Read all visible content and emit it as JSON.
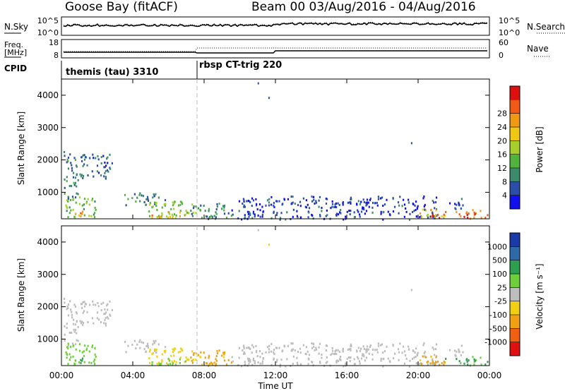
{
  "header": {
    "station": "Goose Bay (fitACF)",
    "beam_info": "Beam 00 03/Aug/2016 - 04/Aug/2016"
  },
  "noise_panel": {
    "left_label": "N.Sky",
    "right_label": "N.Search",
    "left_ticks": [
      "10^5",
      "10^0"
    ],
    "right_ticks": [
      "10^5",
      "10^0"
    ]
  },
  "freq_panel": {
    "left_label_line1": "Freq.",
    "left_label_line2": "[MHz]",
    "right_label": "Nave",
    "left_ticks": [
      "18",
      "8"
    ],
    "right_ticks": [
      "60",
      "0"
    ]
  },
  "cpid_panel": {
    "label": "CPID",
    "segments": [
      {
        "start_hour": 0.0,
        "text": "themis (tau) 3310"
      },
      {
        "start_hour": 7.5,
        "text": "rbsp CT-trig 220"
      }
    ]
  },
  "x_axis": {
    "label": "Time UT",
    "ticks": [
      "00:00",
      "04:00",
      "08:00",
      "12:00",
      "16:00",
      "20:00",
      "00:00"
    ]
  },
  "colors": {
    "power": [
      "#1010ee",
      "#2b4fa8",
      "#3b8a6b",
      "#52b33c",
      "#a6cf2e",
      "#f0c814",
      "#f09a14",
      "#f05a14",
      "#dd1010"
    ],
    "velocity": [
      "#e01010",
      "#f06010",
      "#f0a010",
      "#f0d010",
      "#bdbdbd",
      "#6dcf3a",
      "#2e9e50",
      "#2e6aa8",
      "#1a3aa8"
    ]
  },
  "chart_data": [
    {
      "type": "heatmap",
      "title": "",
      "xlabel": "Time UT",
      "ylabel": "Slant Range [km]",
      "xlim": [
        0,
        24
      ],
      "ylim": [
        180,
        4500
      ],
      "yticks": [
        1000,
        2000,
        3000,
        4000
      ],
      "colorbar": {
        "label": "Power [dB]",
        "ticks": [
          "4",
          "8",
          "12",
          "16",
          "20",
          "24",
          "28"
        ],
        "range": [
          0,
          30
        ]
      },
      "regions": [
        {
          "x": [
            0.1,
            0.9
          ],
          "y": [
            800,
            2300
          ],
          "value": 8
        },
        {
          "x": [
            1.0,
            2.9
          ],
          "y": [
            1400,
            2200
          ],
          "value": 6
        },
        {
          "x": [
            0.2,
            2.0
          ],
          "y": [
            250,
            900
          ],
          "value": 12
        },
        {
          "x": [
            0.4,
            1.2
          ],
          "y": [
            250,
            450
          ],
          "value": 22
        },
        {
          "x": [
            3.5,
            5.8
          ],
          "y": [
            600,
            1000
          ],
          "value": 8
        },
        {
          "x": [
            4.8,
            7.5
          ],
          "y": [
            250,
            750
          ],
          "value": 14
        },
        {
          "x": [
            5.0,
            7.0
          ],
          "y": [
            230,
            450
          ],
          "value": 20
        },
        {
          "x": [
            7.0,
            9.5
          ],
          "y": [
            200,
            700
          ],
          "value": 8
        },
        {
          "x": [
            9.5,
            21.0
          ],
          "y": [
            180,
            900
          ],
          "value": 4
        },
        {
          "x": [
            20.0,
            21.5
          ],
          "y": [
            220,
            500
          ],
          "value": 18
        },
        {
          "x": [
            20.5,
            21.5
          ],
          "y": [
            200,
            380
          ],
          "value": 27
        },
        {
          "x": [
            21.5,
            23.9
          ],
          "y": [
            200,
            480
          ],
          "value": 24
        },
        {
          "x": [
            21.6,
            22.5
          ],
          "y": [
            500,
            900
          ],
          "value": 6
        }
      ],
      "points": [
        {
          "x": 11.0,
          "y": 4400,
          "value": 4
        },
        {
          "x": 11.6,
          "y": 3950,
          "value": 4
        },
        {
          "x": 19.6,
          "y": 2550,
          "value": 4
        }
      ]
    },
    {
      "type": "heatmap",
      "title": "",
      "xlabel": "Time UT",
      "ylabel": "Slant Range [km]",
      "xlim": [
        0,
        24
      ],
      "ylim": [
        180,
        4500
      ],
      "yticks": [
        1000,
        2000,
        3000,
        4000
      ],
      "colorbar": {
        "label": "Velocity [m s⁻¹]",
        "ticks": [
          "-1000",
          "-500",
          "-100",
          "-25",
          "25",
          "100",
          "500",
          "1000"
        ]
      },
      "regions": [
        {
          "x": [
            0.1,
            0.9
          ],
          "y": [
            800,
            2300
          ],
          "value": 0
        },
        {
          "x": [
            1.0,
            2.9
          ],
          "y": [
            1400,
            2200
          ],
          "value": 0
        },
        {
          "x": [
            0.2,
            2.0
          ],
          "y": [
            250,
            900
          ],
          "value": 50
        },
        {
          "x": [
            0.4,
            1.2
          ],
          "y": [
            250,
            450
          ],
          "value": 150
        },
        {
          "x": [
            3.5,
            5.8
          ],
          "y": [
            600,
            1000
          ],
          "value": 0
        },
        {
          "x": [
            4.8,
            7.5
          ],
          "y": [
            250,
            750
          ],
          "value": -60
        },
        {
          "x": [
            5.0,
            7.0
          ],
          "y": [
            230,
            450
          ],
          "value": 60
        },
        {
          "x": [
            7.0,
            9.5
          ],
          "y": [
            200,
            700
          ],
          "value": -150
        },
        {
          "x": [
            9.5,
            21.0
          ],
          "y": [
            180,
            900
          ],
          "value": 0
        },
        {
          "x": [
            20.0,
            21.5
          ],
          "y": [
            220,
            500
          ],
          "value": -150
        },
        {
          "x": [
            20.5,
            21.5
          ],
          "y": [
            200,
            380
          ],
          "value": -200
        },
        {
          "x": [
            21.5,
            23.9
          ],
          "y": [
            200,
            480
          ],
          "value": 150
        },
        {
          "x": [
            21.6,
            22.5
          ],
          "y": [
            500,
            900
          ],
          "value": 0
        }
      ],
      "points": [
        {
          "x": 11.0,
          "y": 4400,
          "value": 0
        },
        {
          "x": 11.6,
          "y": 3950,
          "value": -50
        },
        {
          "x": 19.6,
          "y": 2550,
          "value": 0
        }
      ]
    }
  ]
}
